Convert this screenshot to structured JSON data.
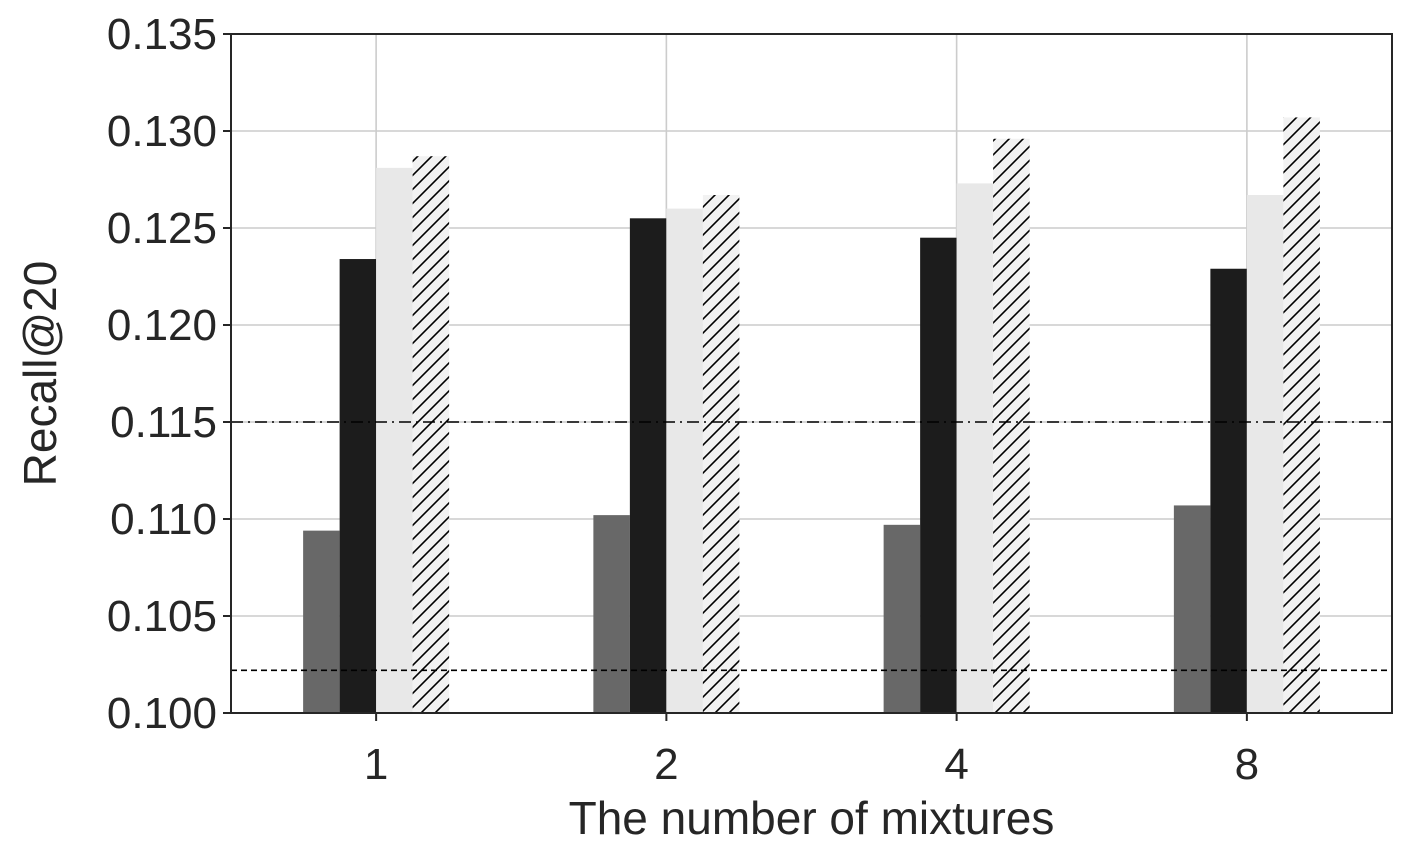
{
  "chart_data": {
    "type": "bar",
    "title": "",
    "xlabel": "The number of mixtures",
    "ylabel": "Recall@20",
    "categories": [
      "1",
      "2",
      "4",
      "8"
    ],
    "ylim": [
      0.1,
      0.135
    ],
    "yticks": [
      "0.100",
      "0.105",
      "0.110",
      "0.115",
      "0.120",
      "0.125",
      "0.130",
      "0.135"
    ],
    "grid": true,
    "legend": "none",
    "series": [
      {
        "values": [
          0.1094,
          0.1102,
          0.1097,
          0.1107
        ],
        "color": "#686868",
        "pattern": "solid"
      },
      {
        "values": [
          0.1234,
          0.1255,
          0.1245,
          0.1229
        ],
        "color": "#1c1c1c",
        "pattern": "solid"
      },
      {
        "values": [
          0.1281,
          0.126,
          0.1273,
          0.1267
        ],
        "color": "#e8e8e8",
        "pattern": "solid"
      },
      {
        "values": [
          0.1287,
          0.1267,
          0.1296,
          0.1307
        ],
        "color": "#f2f2f2",
        "pattern": "hatch"
      }
    ],
    "reference_lines": [
      {
        "value": 0.115,
        "style": "dash-dot",
        "color": "#000000"
      },
      {
        "value": 0.1022,
        "style": "dashed",
        "color": "#000000"
      }
    ]
  }
}
